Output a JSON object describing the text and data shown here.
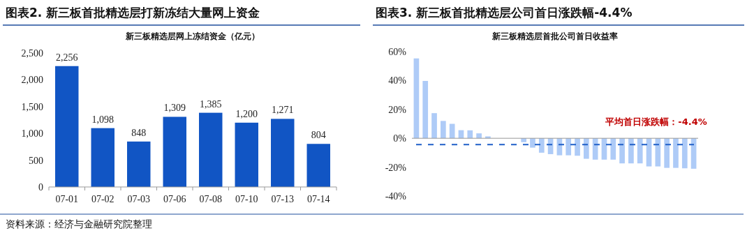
{
  "chart_data": [
    {
      "type": "bar",
      "title": "图表2. 新三板首批精选层打新冻结大量网上资金",
      "subtitle": "新三板精选层网上冻结资金（亿元）",
      "categories": [
        "07-01",
        "07-02",
        "07-03",
        "07-06",
        "07-08",
        "07-10",
        "07-13",
        "07-14"
      ],
      "series": [
        {
          "color": "#1155c4",
          "values": [
            2256,
            1098,
            848,
            1309,
            1385,
            1200,
            1271,
            804
          ],
          "value_labels": [
            "2,256",
            "1,098",
            "848",
            "1,309",
            "1,385",
            "1,200",
            "1,271",
            "804"
          ]
        }
      ],
      "ylim": [
        0,
        2500
      ],
      "yticks": [
        0,
        {
          "value": 500,
          "label": "500"
        },
        {
          "value": 1000,
          "label": "1,000"
        },
        {
          "value": 1500,
          "label": "1,500"
        },
        {
          "value": 2000,
          "label": "2,000"
        },
        {
          "value": 2500,
          "label": "2,500"
        }
      ],
      "annotations": [
        "资料来源：经济与金融研究院整理"
      ]
    },
    {
      "type": "bar",
      "title": "图表3. 新三板首批精选层公司首日涨跌幅-4.4%",
      "subtitle": "新三板精选层首批公司首日收益率",
      "categories": [
        null,
        null,
        null,
        null,
        null,
        null,
        null,
        null,
        null,
        null,
        null,
        null,
        null,
        null,
        null,
        null,
        null,
        null,
        null,
        null,
        null,
        null,
        null,
        null,
        null,
        null,
        null,
        null,
        null,
        null,
        null,
        null
      ],
      "series": [
        {
          "color": "#aecbf7",
          "values": [
            55.3,
            39.7,
            17.4,
            12,
            10,
            5.6,
            5.5,
            3.4,
            1.3,
            0,
            0,
            0,
            -2.7,
            -6.5,
            -10,
            -11,
            -11.8,
            -11.8,
            -12.1,
            -14.2,
            -14.8,
            -14.8,
            -14.8,
            -17.4,
            -17.4,
            -17.4,
            -19.5,
            -19.5,
            -20.5,
            -20.5,
            -20.8,
            -21.1
          ]
        }
      ],
      "ylim": [
        -40,
        60
      ],
      "yticks": [
        {
          "value": -40,
          "label": "-40%"
        },
        {
          "value": -20,
          "label": "-20%"
        },
        {
          "value": 0,
          "label": "0%"
        },
        {
          "value": 20,
          "label": "20%"
        },
        {
          "value": 40,
          "label": "40%"
        },
        {
          "value": 60,
          "label": "60%"
        }
      ],
      "ref_lines": [
        {
          "axis": "y",
          "value": -4.4,
          "label": "平均首日涨跌幅：-4.4%",
          "color": "#1f5fc8",
          "line_style": "dashed"
        }
      ]
    }
  ]
}
